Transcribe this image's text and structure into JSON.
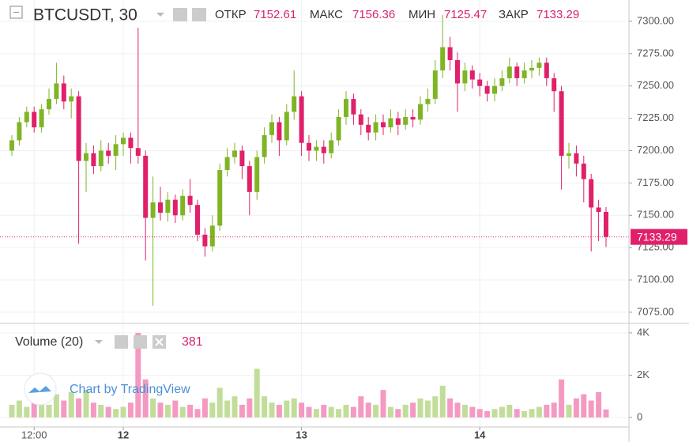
{
  "chart_data": {
    "type": "candlestick",
    "symbol": "BTCUSDT, 30",
    "legend_labels": {
      "open": "ОТКР",
      "high": "МАКС",
      "low": "МИН",
      "close": "ЗАКР"
    },
    "volume_title": "Volume (20)",
    "watermark": "Chart by TradingView",
    "up_color": "#7fb525",
    "down_color": "#e0206a",
    "volume_up_color": "#c2dd9a",
    "volume_down_color": "#f49ac2",
    "open": [
      7200,
      7208,
      7222,
      7230,
      7218,
      7232,
      7240,
      7252,
      7238,
      7242,
      7192,
      7198,
      7188,
      7200,
      7196,
      7205,
      7210,
      7202,
      7196,
      7148,
      7160,
      7152,
      7162,
      7150,
      7165,
      7158,
      7135,
      7126,
      7142,
      7185,
      7195,
      7200,
      7188,
      7168,
      7195,
      7212,
      7222,
      7208,
      7230,
      7242,
      7206,
      7200,
      7203,
      7198,
      7208,
      7226,
      7240,
      7228,
      7220,
      7214,
      7222,
      7218,
      7225,
      7220,
      7226,
      7224,
      7236,
      7240,
      7262,
      7280,
      7270,
      7252,
      7262,
      7255,
      7250,
      7244,
      7250,
      7256,
      7265,
      7256,
      7262,
      7264,
      7268,
      7256,
      7246,
      7196,
      7198,
      7190,
      7178,
      7156,
      7152.61
    ],
    "high": [
      7212,
      7226,
      7234,
      7234,
      7236,
      7248,
      7268,
      7258,
      7248,
      7246,
      7206,
      7204,
      7208,
      7206,
      7212,
      7214,
      7214,
      7295,
      7200,
      7180,
      7172,
      7168,
      7166,
      7170,
      7178,
      7162,
      7140,
      7150,
      7190,
      7202,
      7206,
      7204,
      7192,
      7200,
      7218,
      7228,
      7226,
      7236,
      7262,
      7246,
      7212,
      7208,
      7208,
      7214,
      7232,
      7246,
      7244,
      7232,
      7226,
      7228,
      7228,
      7232,
      7230,
      7232,
      7232,
      7242,
      7248,
      7270,
      7305,
      7288,
      7276,
      7268,
      7266,
      7260,
      7254,
      7256,
      7262,
      7272,
      7268,
      7268,
      7270,
      7272,
      7272,
      7260,
      7250,
      7206,
      7204,
      7196,
      7182,
      7162,
      7156.36
    ],
    "low": [
      7196,
      7204,
      7218,
      7214,
      7214,
      7228,
      7236,
      7232,
      7225,
      7128,
      7168,
      7182,
      7184,
      7190,
      7185,
      7196,
      7190,
      7190,
      7115,
      7080,
      7146,
      7145,
      7144,
      7146,
      7152,
      7130,
      7118,
      7122,
      7138,
      7180,
      7190,
      7178,
      7150,
      7162,
      7190,
      7206,
      7196,
      7204,
      7224,
      7196,
      7192,
      7192,
      7190,
      7194,
      7204,
      7220,
      7220,
      7212,
      7208,
      7208,
      7212,
      7214,
      7212,
      7216,
      7218,
      7220,
      7230,
      7236,
      7256,
      7262,
      7230,
      7246,
      7248,
      7242,
      7238,
      7238,
      7246,
      7252,
      7250,
      7252,
      7256,
      7258,
      7250,
      7230,
      7170,
      7186,
      7180,
      7160,
      7122,
      7130,
      7125.47
    ],
    "close": [
      7208,
      7222,
      7230,
      7218,
      7232,
      7240,
      7252,
      7238,
      7242,
      7192,
      7198,
      7188,
      7200,
      7196,
      7205,
      7210,
      7202,
      7196,
      7148,
      7160,
      7152,
      7162,
      7150,
      7165,
      7158,
      7135,
      7126,
      7142,
      7185,
      7195,
      7200,
      7188,
      7168,
      7195,
      7212,
      7222,
      7208,
      7230,
      7242,
      7206,
      7200,
      7203,
      7198,
      7208,
      7226,
      7240,
      7228,
      7220,
      7214,
      7222,
      7218,
      7225,
      7220,
      7226,
      7224,
      7236,
      7240,
      7262,
      7280,
      7270,
      7252,
      7262,
      7255,
      7250,
      7244,
      7250,
      7256,
      7265,
      7256,
      7262,
      7264,
      7268,
      7256,
      7246,
      7196,
      7198,
      7190,
      7178,
      7156,
      7152.61,
      7133.29
    ],
    "volume": [
      600,
      800,
      500,
      700,
      900,
      600,
      1100,
      800,
      1200,
      900,
      1300,
      700,
      600,
      500,
      400,
      500,
      700,
      4000,
      1800,
      900,
      700,
      600,
      800,
      500,
      600,
      400,
      900,
      700,
      1400,
      800,
      1000,
      600,
      900,
      2300,
      1000,
      700,
      600,
      800,
      900,
      700,
      500,
      400,
      600,
      500,
      400,
      600,
      500,
      1000,
      700,
      600,
      1300,
      500,
      400,
      600,
      700,
      900,
      800,
      1000,
      1500,
      900,
      700,
      600,
      500,
      400,
      300,
      400,
      500,
      600,
      400,
      300,
      400,
      500,
      600,
      700,
      1800,
      600,
      900,
      1100,
      800,
      1200,
      381
    ],
    "ylim": [
      7067,
      7316.5
    ],
    "yticks": [
      {
        "value": 7075,
        "label": "7075.00"
      },
      {
        "value": 7100,
        "label": "7100.00"
      },
      {
        "value": 7125,
        "label": "7125.00"
      },
      {
        "value": 7150,
        "label": "7150.00"
      },
      {
        "value": 7175,
        "label": "7175.00"
      },
      {
        "value": 7200,
        "label": "7200.00"
      },
      {
        "value": 7225,
        "label": "7225.00"
      },
      {
        "value": 7250,
        "label": "7250.00"
      },
      {
        "value": 7275,
        "label": "7275.00"
      },
      {
        "value": 7300,
        "label": "7300.00"
      }
    ],
    "y2lim": [
      -450,
      4410
    ],
    "y2ticks": [
      0,
      {
        "value": 2000,
        "label": "2K"
      },
      {
        "value": 4000,
        "label": "4K"
      }
    ],
    "xticks": [
      {
        "value": 3,
        "label": "12:00"
      },
      {
        "value": 15,
        "label": "12"
      },
      {
        "value": 39,
        "label": "13"
      },
      {
        "value": 63,
        "label": "14"
      }
    ],
    "grid": true
  }
}
